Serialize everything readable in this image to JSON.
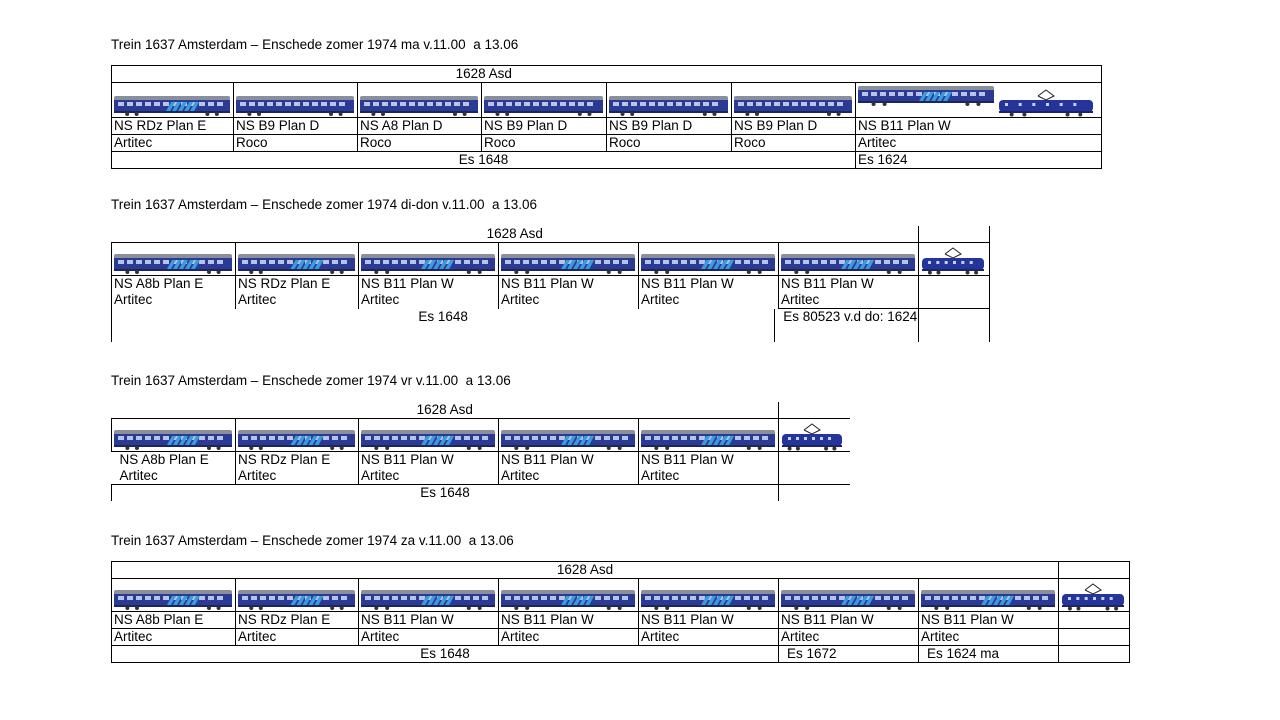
{
  "colors": {
    "coach_blue": "#2b3b93",
    "coach_roof": "#8a8f9c",
    "stripe": "#3a9be0",
    "loco_blue": "#25349a"
  },
  "tables": [
    {
      "title": "Trein 1637 Amsterdam – Enschede zomer 1974 ma v.11.00  a 13.06",
      "header": "1628 Asd",
      "types": [
        "NS RDz Plan E",
        "NS B9 Plan D",
        "NS A8 Plan D",
        "NS B9 Plan D",
        "NS B9 Plan D",
        "NS B9 Plan D",
        "NS B11 Plan W"
      ],
      "makers": [
        "Artitec",
        "Roco",
        "Roco",
        "Roco",
        "Roco",
        "Roco",
        "Artitec"
      ],
      "es_main": "Es 1648",
      "es_last": "Es 1624"
    },
    {
      "title": "Trein 1637 Amsterdam – Enschede zomer 1974 di-don v.11.00  a 13.06",
      "header": "1628 Asd",
      "types": [
        "NS A8b Plan E",
        "NS RDz Plan E",
        "NS B11 Plan W",
        "NS B11 Plan W",
        "NS B11 Plan W",
        "NS B11 Plan W"
      ],
      "makers": [
        "Artitec",
        "Artitec",
        "Artitec",
        "Artitec",
        "Artitec",
        "Artitec"
      ],
      "es_main": "Es 1648",
      "es_last": "Es 80523 v.d do: 1624"
    },
    {
      "title": "Trein 1637 Amsterdam – Enschede zomer 1974 vr v.11.00  a 13.06",
      "header": "1628 Asd",
      "types": [
        "NS A8b Plan E",
        "NS RDz Plan E",
        "NS B11 Plan W",
        "NS B11 Plan W",
        "NS B11 Plan W"
      ],
      "makers": [
        "Artitec",
        "Artitec",
        "Artitec",
        "Artitec",
        "Artitec"
      ],
      "es_main": "Es 1648"
    },
    {
      "title": "Trein 1637 Amsterdam – Enschede zomer 1974 za v.11.00  a 13.06",
      "header": "1628 Asd",
      "types": [
        "NS A8b Plan E",
        "NS RDz Plan E",
        "NS B11 Plan W",
        "NS B11 Plan W",
        "NS B11 Plan W",
        "NS B11 Plan W",
        "NS B11 Plan W"
      ],
      "makers": [
        "Artitec",
        "Artitec",
        "Artitec",
        "Artitec",
        "Artitec",
        "Artitec",
        "Artitec"
      ],
      "es_main": "Es 1648",
      "es_6": "Es 1672",
      "es_7": "Es 1624 ma"
    }
  ]
}
